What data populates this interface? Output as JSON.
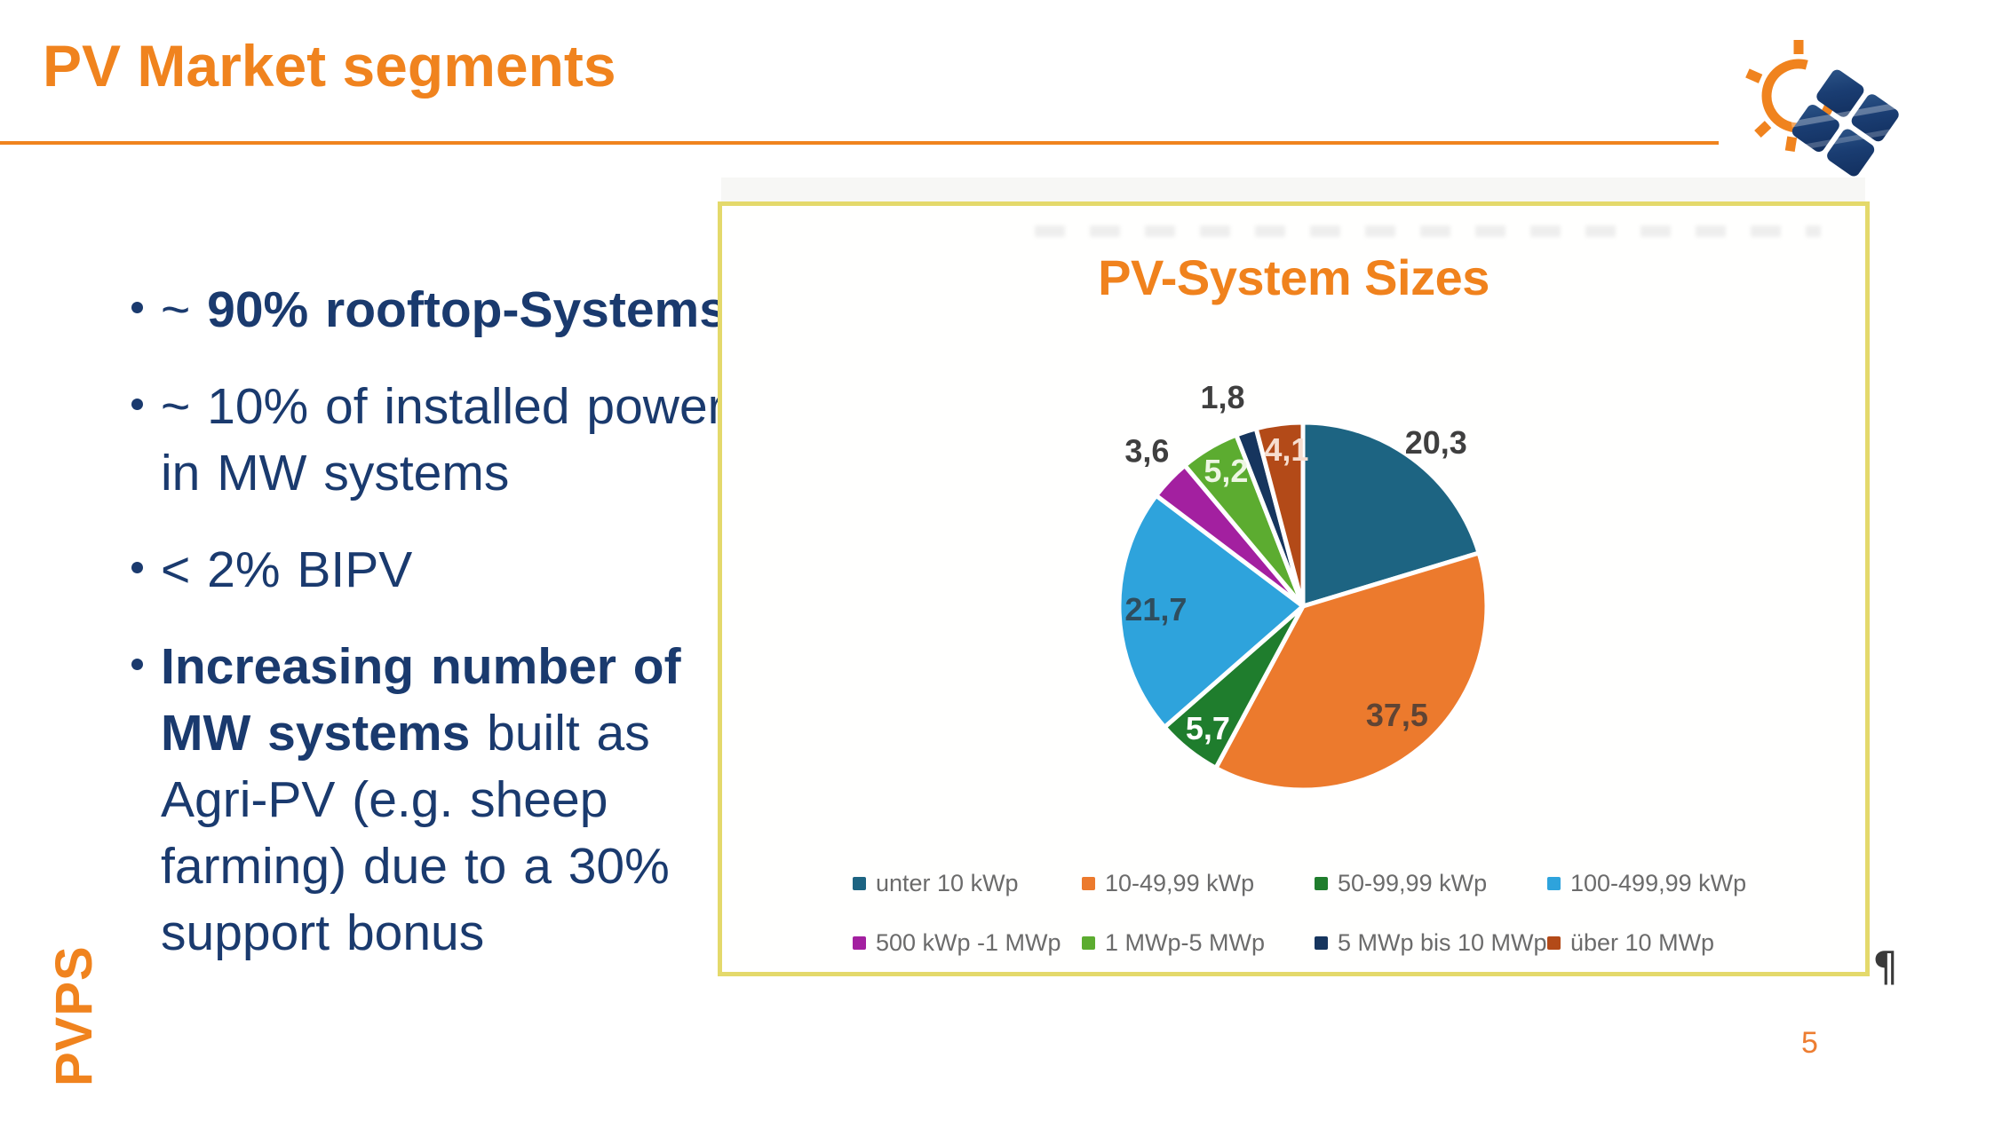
{
  "slide": {
    "title": "PV Market segments",
    "page_number": "5",
    "footer_vertical": "PVPS",
    "accent_orange": "#F0831E",
    "text_navy": "#1a3a6e"
  },
  "bullets": [
    {
      "lines": [
        [
          {
            "t": "~ ",
            "b": false
          },
          {
            "t": "90% rooftop-Systems",
            "b": true
          }
        ]
      ]
    },
    {
      "lines": [
        [
          {
            "t": "~ 10% of installed power",
            "b": false
          }
        ],
        [
          {
            "t": "in MW systems",
            "b": false
          }
        ]
      ]
    },
    {
      "lines": [
        [
          {
            "t": "< 2% BIPV",
            "b": false
          }
        ]
      ]
    },
    {
      "lines": [
        [
          {
            "t": "Increasing number of",
            "b": true
          }
        ],
        [
          {
            "t": "MW systems",
            "b": true
          },
          {
            "t": " built as",
            "b": false
          }
        ],
        [
          {
            "t": "Agri-PV (e.g. sheep",
            "b": false
          }
        ],
        [
          {
            "t": "farming) due to a 30%",
            "b": false
          }
        ],
        [
          {
            "t": "support bonus",
            "b": false
          }
        ]
      ]
    }
  ],
  "chart_box": {
    "title": "PV-System Sizes",
    "title_color": "#F0821D",
    "border_color": "#E4D96B",
    "paragraph_mark": "¶"
  },
  "chart_data": {
    "type": "pie",
    "title": "PV-System Sizes",
    "unit": "percent",
    "start_angle_deg": 0,
    "direction": "clockwise",
    "legend_position": "bottom",
    "legend_rows": [
      [
        0,
        1,
        2,
        3
      ],
      [
        4,
        5,
        6,
        7
      ]
    ],
    "slices": [
      {
        "label": "unter 10 kWp",
        "value": 20.3,
        "display": "20,3",
        "color": "#1D6482",
        "label_pos": "outside",
        "label_color": "#3f3f3f",
        "label_angle": 39,
        "label_f": 1.15
      },
      {
        "label": "10-49,99 kWp",
        "value": 37.5,
        "display": "37,5",
        "color": "#EC7A2D",
        "label_pos": "inside",
        "label_color": "#5f4434",
        "label_angle": 139,
        "label_f": 0.78
      },
      {
        "label": "50-99,99 kWp",
        "value": 5.7,
        "display": "5,7",
        "color": "#1F7D2D",
        "label_pos": "inside",
        "label_color": "#ffffff",
        "label_angle": 218,
        "label_f": 0.84
      },
      {
        "label": "100-499,99 kWp",
        "value": 21.7,
        "display": "21,7",
        "color": "#2EA3DC",
        "label_pos": "inside",
        "label_color": "#2F4D5D",
        "label_angle": 269,
        "label_f": 0.8
      },
      {
        "label": "500 kWp -1 MWp",
        "value": 3.6,
        "display": "3,6",
        "color": "#A320A0",
        "label_pos": "outside",
        "label_color": "#3f3f3f",
        "label_angle": 315,
        "label_f": 1.2
      },
      {
        "label": "1 MWp-5 MWp",
        "value": 5.2,
        "display": "5,2",
        "color": "#5CAC30",
        "label_pos": "inside",
        "label_color": "#EDF6E2",
        "label_angle": 330.5,
        "label_f": 0.85
      },
      {
        "label": "5 MWp bis 10 MWp",
        "value": 1.8,
        "display": "1,8",
        "color": "#16355E",
        "label_pos": "outside",
        "label_color": "#3f3f3f",
        "label_angle": 339,
        "label_f": 1.22
      },
      {
        "label": "über 10 MWp",
        "value": 4.1,
        "display": "4,1",
        "color": "#B34A18",
        "label_pos": "inside",
        "label_color": "#F6DDCF",
        "label_angle": 354,
        "label_f": 0.86
      }
    ]
  }
}
